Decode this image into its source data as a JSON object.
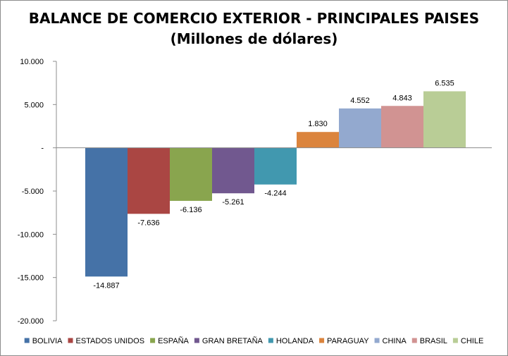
{
  "chart_data": {
    "type": "bar",
    "title": "BALANCE DE COMERCIO EXTERIOR - PRINCIPALES PAISES",
    "subtitle": "(Millones de dólares)",
    "categories": [
      "BOLIVIA",
      "ESTADOS UNIDOS",
      "ESPAÑA",
      "GRAN BRETAÑA",
      "HOLANDA",
      "PARAGUAY",
      "CHINA",
      "BRASIL",
      "CHILE"
    ],
    "values": [
      -14887,
      -7636,
      -6136,
      -5261,
      -4244,
      1830,
      4552,
      4843,
      6535
    ],
    "value_labels": [
      "-14.887",
      "-7.636",
      "-6.136",
      "-5.261",
      "-4.244",
      "1.830",
      "4.552",
      "4.843",
      "6.535"
    ],
    "colors": [
      "#4572a7",
      "#aa4643",
      "#89a54e",
      "#71588f",
      "#4198af",
      "#db843d",
      "#93a9cf",
      "#d19392",
      "#b9cd96"
    ],
    "ylim": [
      -20000,
      10000
    ],
    "yticks": [
      10000,
      5000,
      0,
      -5000,
      -10000,
      -15000,
      -20000
    ],
    "ytick_labels": [
      "10.000",
      "5.000",
      "-",
      "-5.000",
      "-10.000",
      "-15.000",
      "-20.000"
    ],
    "xlabel": "",
    "ylabel": "",
    "grid": false,
    "legend": "bottom"
  }
}
